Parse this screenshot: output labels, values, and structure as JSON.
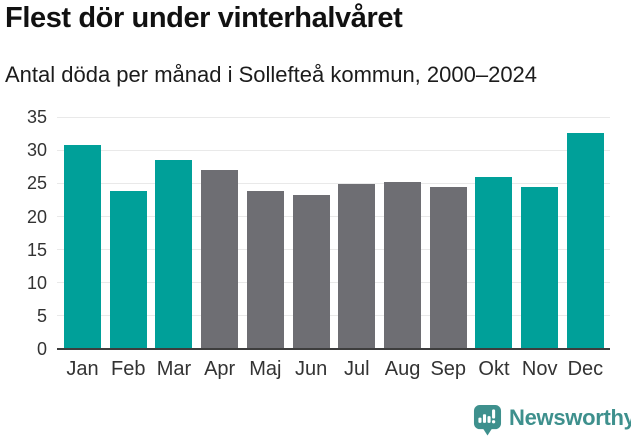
{
  "colors": {
    "highlight": "#00a099",
    "muted": "#6e6e73",
    "logo": "#3e908d",
    "gridline": "#e9e9e9",
    "axis_line": "#3d3d3d",
    "axis_text": "#333333"
  },
  "chart_data": {
    "type": "bar",
    "title": "Flest dör under vinterhalvåret",
    "subtitle": "Antal döda per månad i Sollefteå kommun, 2000–2024",
    "categories": [
      "Jan",
      "Feb",
      "Mar",
      "Apr",
      "Maj",
      "Jun",
      "Jul",
      "Aug",
      "Sep",
      "Okt",
      "Nov",
      "Dec"
    ],
    "values": [
      30.8,
      23.9,
      28.5,
      27.0,
      23.9,
      23.2,
      24.9,
      25.2,
      24.5,
      25.9,
      24.4,
      32.6
    ],
    "color_keys": [
      "highlight",
      "highlight",
      "highlight",
      "muted",
      "muted",
      "muted",
      "muted",
      "muted",
      "muted",
      "highlight",
      "highlight",
      "highlight"
    ],
    "yticks": [
      0,
      5,
      10,
      15,
      20,
      25,
      30,
      35
    ],
    "ylim": [
      0,
      35
    ],
    "xlabel": "",
    "ylabel": "",
    "grid": true,
    "legend": "none"
  },
  "footer": {
    "brand": "Newsworthy"
  }
}
